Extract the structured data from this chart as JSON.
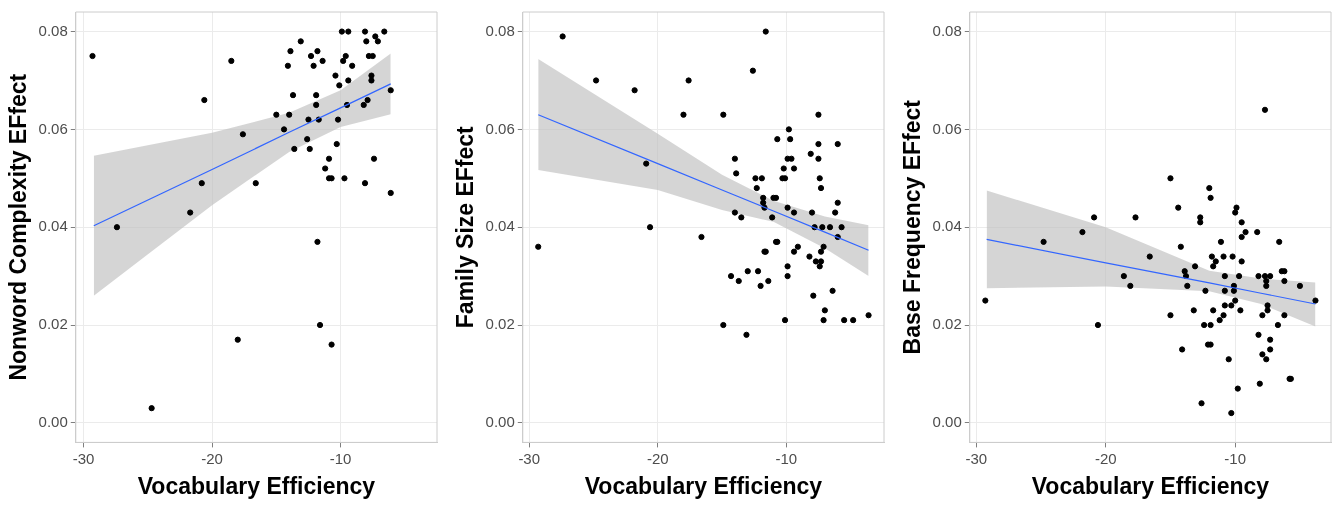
{
  "chart_data": [
    {
      "type": "scatter",
      "xlabel": "Vocabulary Efficiency",
      "ylabel": "Nonword Complexity EFfect",
      "xlim": [
        -30.6,
        -2.5
      ],
      "ylim": [
        -0.004,
        0.084
      ],
      "xticks": [
        -30,
        -20,
        -10
      ],
      "yticks": [
        {
          "value": 0,
          "label": "0.00"
        },
        {
          "value": 0.02,
          "label": "0.02"
        },
        {
          "value": 0.04,
          "label": "0.04"
        },
        {
          "value": 0.06,
          "label": "0.06"
        },
        {
          "value": 0.08,
          "label": "0.08"
        }
      ],
      "grid": true,
      "legend": false,
      "marker": "circle",
      "series": [
        {
          "type": "scatter",
          "color": "#000000",
          "x": [
            -29.3,
            -27.4,
            -24.7,
            -21.7,
            -20.8,
            -20.6,
            -18.5,
            -18.0,
            -17.6,
            -16.6,
            -15.0,
            -14.4,
            -14.1,
            -14.0,
            -13.9,
            -13.7,
            -13.6,
            -13.1,
            -12.6,
            -12.5,
            -12.4,
            -12.3,
            -12.1,
            -11.9,
            -11.9,
            -11.8,
            -11.8,
            -11.7,
            -11.6,
            -11.4,
            -11.2,
            -10.9,
            -10.9,
            -10.7,
            -10.7,
            -10.4,
            -10.3,
            -10.2,
            -10.1,
            -9.9,
            -9.8,
            -9.7,
            -9.6,
            -9.5,
            -9.4,
            -9.4,
            -9.1,
            -8.2,
            -8.1,
            -8.1,
            -8.0,
            -7.9,
            -7.8,
            -7.6,
            -7.6,
            -7.5,
            -7.4,
            -7.3,
            -7.1,
            -6.6,
            -6.1,
            -6.1
          ],
          "values": [
            0.075,
            0.04,
            0.003,
            0.043,
            0.049,
            0.066,
            0.074,
            0.017,
            0.059,
            0.049,
            0.063,
            0.06,
            0.073,
            0.063,
            0.076,
            0.067,
            0.056,
            0.078,
            0.058,
            0.062,
            0.056,
            0.075,
            0.073,
            0.065,
            0.067,
            0.037,
            0.076,
            0.062,
            0.02,
            0.074,
            0.052,
            0.054,
            0.05,
            0.05,
            0.016,
            0.071,
            0.057,
            0.062,
            0.069,
            0.08,
            0.074,
            0.05,
            0.075,
            0.065,
            0.07,
            0.08,
            0.073,
            0.065,
            0.08,
            0.049,
            0.078,
            0.066,
            0.075,
            0.071,
            0.07,
            0.075,
            0.054,
            0.079,
            0.078,
            0.08,
            0.068,
            0.047
          ]
        },
        {
          "type": "line",
          "color": "#3366ff",
          "marker": "none",
          "x": [
            -29.2,
            -20,
            -14,
            -10,
            -6.1
          ],
          "values": [
            0.0403,
            0.0518,
            0.0594,
            0.0644,
            0.0693
          ],
          "lower": [
            0.026,
            0.0445,
            0.0554,
            0.0605,
            0.0631
          ],
          "upper": [
            0.0546,
            0.0593,
            0.0634,
            0.068,
            0.0755
          ]
        }
      ]
    },
    {
      "type": "scatter",
      "xlabel": "Vocabulary Efficiency",
      "ylabel": "Family Size EFfect",
      "xlim": [
        -30.5,
        -2.4
      ],
      "ylim": [
        -0.004,
        0.084
      ],
      "xticks": [
        -30,
        -20,
        -10
      ],
      "yticks": [
        {
          "value": 0,
          "label": "0.00"
        },
        {
          "value": 0.02,
          "label": "0.02"
        },
        {
          "value": 0.04,
          "label": "0.04"
        },
        {
          "value": 0.06,
          "label": "0.06"
        },
        {
          "value": 0.08,
          "label": "0.08"
        }
      ],
      "grid": true,
      "legend": false,
      "marker": "circle",
      "series": [
        {
          "type": "scatter",
          "color": "#000000",
          "x": [
            -29.3,
            -27.4,
            -24.8,
            -21.8,
            -20.9,
            -20.6,
            -18.0,
            -17.6,
            -16.6,
            -14.9,
            -14.9,
            -14.3,
            -14.0,
            -14.0,
            -13.9,
            -13.7,
            -13.5,
            -13.1,
            -13.0,
            -12.6,
            -12.4,
            -12.3,
            -12.2,
            -12.0,
            -11.9,
            -11.8,
            -11.8,
            -11.7,
            -11.7,
            -11.6,
            -11.6,
            -11.4,
            -11.1,
            -11.0,
            -10.8,
            -10.8,
            -10.7,
            -10.7,
            -10.3,
            -10.2,
            -10.1,
            -10.1,
            -9.9,
            -9.9,
            -9.9,
            -9.9,
            -9.8,
            -9.7,
            -9.6,
            -9.4,
            -9.4,
            -9.4,
            -9.1,
            -8.2,
            -8.1,
            -8.0,
            -7.9,
            -7.8,
            -7.7,
            -7.5,
            -7.5,
            -7.5,
            -7.4,
            -7.4,
            -7.3,
            -7.3,
            -7.3,
            -7.2,
            -7.1,
            -7.1,
            -7.0,
            -6.6,
            -6.4,
            -6.2,
            -6.0,
            -6.0,
            -6.0,
            -5.7,
            -5.5,
            -4.8,
            -3.6
          ],
          "values": [
            0.036,
            0.079,
            0.07,
            0.068,
            0.053,
            0.04,
            0.063,
            0.07,
            0.038,
            0.063,
            0.02,
            0.03,
            0.054,
            0.043,
            0.051,
            0.029,
            0.042,
            0.018,
            0.031,
            0.072,
            0.05,
            0.048,
            0.031,
            0.028,
            0.05,
            0.046,
            0.045,
            0.044,
            0.035,
            0.035,
            0.08,
            0.029,
            0.042,
            0.046,
            0.046,
            0.037,
            0.037,
            0.058,
            0.05,
            0.052,
            0.05,
            0.021,
            0.044,
            0.03,
            0.032,
            0.054,
            0.06,
            0.058,
            0.054,
            0.052,
            0.043,
            0.035,
            0.036,
            0.034,
            0.055,
            0.043,
            0.026,
            0.04,
            0.033,
            0.054,
            0.063,
            0.057,
            0.05,
            0.032,
            0.048,
            0.035,
            0.033,
            0.04,
            0.036,
            0.021,
            0.023,
            0.04,
            0.027,
            0.043,
            0.045,
            0.057,
            0.038,
            0.04,
            0.021,
            0.021,
            0.022
          ]
        },
        {
          "type": "line",
          "color": "#3366ff",
          "marker": "none",
          "x": [
            -29.3,
            -20,
            -15,
            -11,
            -7,
            -3.6
          ],
          "values": [
            0.063,
            0.053,
            0.0476,
            0.0433,
            0.039,
            0.0353
          ],
          "lower": [
            0.0517,
            0.0476,
            0.0435,
            0.0411,
            0.0357,
            0.03
          ],
          "upper": [
            0.0744,
            0.0591,
            0.0507,
            0.0454,
            0.0422,
            0.0404
          ]
        }
      ]
    },
    {
      "type": "scatter",
      "xlabel": "Vocabulary Efficiency",
      "ylabel": "Base Frequency EFfect",
      "xlim": [
        -30.5,
        -2.6
      ],
      "ylim": [
        -0.004,
        0.084
      ],
      "xticks": [
        -30,
        -20,
        -10
      ],
      "yticks": [
        {
          "value": 0,
          "label": "0.00"
        },
        {
          "value": 0.02,
          "label": "0.02"
        },
        {
          "value": 0.04,
          "label": "0.04"
        },
        {
          "value": 0.06,
          "label": "0.06"
        },
        {
          "value": 0.08,
          "label": "0.08"
        }
      ],
      "grid": true,
      "legend": false,
      "marker": "circle",
      "series": [
        {
          "type": "scatter",
          "color": "#000000",
          "x": [
            -29.3,
            -24.8,
            -21.8,
            -20.9,
            -20.6,
            -18.6,
            -18.1,
            -17.7,
            -16.6,
            -15.0,
            -15.0,
            -14.4,
            -14.2,
            -14.1,
            -13.9,
            -13.8,
            -13.7,
            -13.2,
            -13.1,
            -12.7,
            -12.7,
            -12.6,
            -12.4,
            -12.3,
            -12.1,
            -12.0,
            -11.9,
            -11.9,
            -11.9,
            -11.8,
            -11.7,
            -11.7,
            -11.5,
            -11.2,
            -11.1,
            -10.9,
            -10.9,
            -10.8,
            -10.8,
            -10.8,
            -10.5,
            -10.3,
            -10.3,
            -10.2,
            -10.1,
            -10.1,
            -10.0,
            -10.0,
            -9.9,
            -9.8,
            -9.7,
            -9.6,
            -9.5,
            -9.5,
            -9.5,
            -9.2,
            -8.3,
            -8.2,
            -8.2,
            -8.1,
            -7.9,
            -7.9,
            -7.7,
            -7.7,
            -7.6,
            -7.6,
            -7.6,
            -7.5,
            -7.5,
            -7.3,
            -7.3,
            -7.3,
            -6.7,
            -6.6,
            -6.4,
            -6.2,
            -6.2,
            -6.2,
            -5.8,
            -5.7,
            -5.0,
            -3.8
          ],
          "values": [
            0.025,
            0.037,
            0.039,
            0.042,
            0.02,
            0.03,
            0.028,
            0.042,
            0.034,
            0.05,
            0.022,
            0.044,
            0.036,
            0.015,
            0.031,
            0.03,
            0.028,
            0.023,
            0.032,
            0.042,
            0.041,
            0.004,
            0.02,
            0.027,
            0.016,
            0.048,
            0.016,
            0.02,
            0.046,
            0.034,
            0.032,
            0.023,
            0.033,
            0.021,
            0.037,
            0.034,
            0.022,
            0.027,
            0.03,
            0.024,
            0.013,
            0.024,
            0.002,
            0.034,
            0.028,
            0.027,
            0.025,
            0.043,
            0.044,
            0.007,
            0.03,
            0.023,
            0.041,
            0.038,
            0.033,
            0.039,
            0.039,
            0.018,
            0.03,
            0.008,
            0.014,
            0.022,
            0.03,
            0.064,
            0.029,
            0.028,
            0.013,
            0.024,
            0.023,
            0.03,
            0.017,
            0.015,
            0.02,
            0.037,
            0.031,
            0.031,
            0.029,
            0.022,
            0.009,
            0.009,
            0.028,
            0.025
          ]
        },
        {
          "type": "line",
          "color": "#3366ff",
          "marker": "none",
          "x": [
            -29.2,
            -20,
            -12,
            -8,
            -3.8
          ],
          "values": [
            0.0375,
            0.0327,
            0.0286,
            0.0265,
            0.0243
          ],
          "lower": [
            0.0275,
            0.0279,
            0.0269,
            0.0243,
            0.0197
          ],
          "upper": [
            0.0475,
            0.04,
            0.0311,
            0.0295,
            0.0287
          ]
        }
      ]
    }
  ]
}
